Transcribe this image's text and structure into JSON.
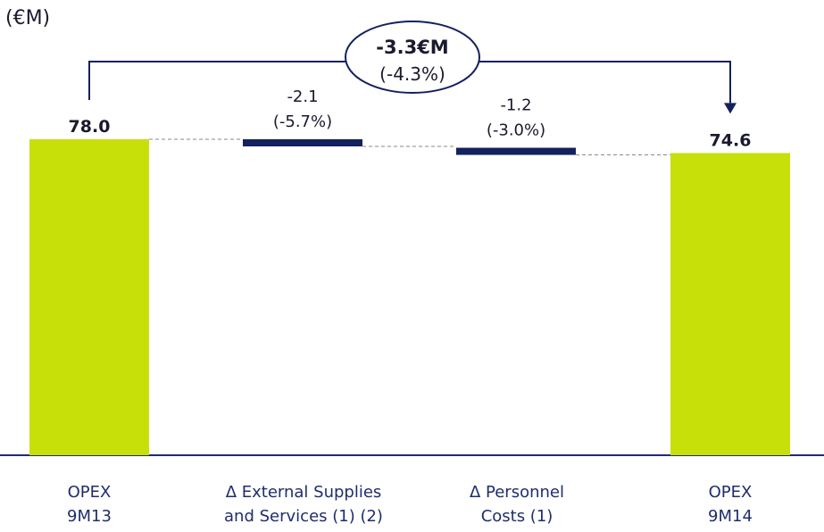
{
  "unit_label": "(€M)",
  "chart_data": {
    "type": "bar",
    "subtype": "waterfall",
    "unit": "€M",
    "categories": [
      [
        "OPEX",
        "9M13"
      ],
      [
        "Δ External Supplies",
        "and Services (1) (2)"
      ],
      [
        "Δ Personnel",
        "Costs (1)"
      ],
      [
        "OPEX",
        "9M14"
      ]
    ],
    "values": [
      78.0,
      -2.1,
      -1.2,
      74.6
    ],
    "kinds": [
      "total",
      "delta",
      "delta",
      "total"
    ],
    "labels": [
      [
        "78.0"
      ],
      [
        "-2.1",
        "(-5.7%)"
      ],
      [
        "-1.2",
        "(-3.0%)"
      ],
      [
        "74.6"
      ]
    ],
    "total_change": {
      "value": "-3.3€M",
      "percent": "(-4.3%)"
    },
    "colors": {
      "total": "#c8e00a",
      "delta": "#14215f",
      "text": "#1a1a2e",
      "category": "#1f2d6e",
      "connector": "#8a8a8a"
    }
  }
}
